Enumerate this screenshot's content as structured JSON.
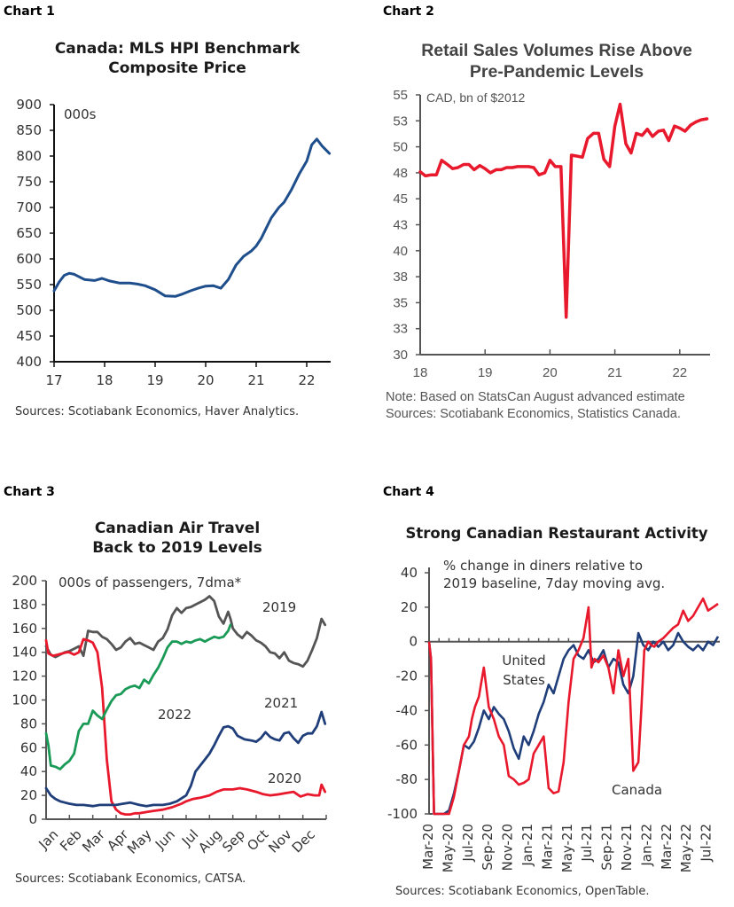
{
  "chart_data": [
    {
      "id": "chart1",
      "panel_label": "Chart 1",
      "type": "line",
      "title_lines": [
        "Canada: MLS HPI Benchmark",
        "Composite Price"
      ],
      "unit_label": "000s",
      "xlabel": "",
      "ylabel": "",
      "x_ticks": [
        "17",
        "18",
        "19",
        "20",
        "21",
        "22"
      ],
      "x_tick_values": [
        17,
        18,
        19,
        20,
        21,
        22
      ],
      "xlim": [
        17,
        22.5
      ],
      "y_ticks": [
        400,
        450,
        500,
        550,
        600,
        650,
        700,
        750,
        800,
        850,
        900
      ],
      "ylim": [
        400,
        900
      ],
      "grid": false,
      "series": [
        {
          "name": "MLS HPI Composite Price",
          "color": "#1f4e8c",
          "x": [
            17.0,
            17.1,
            17.2,
            17.3,
            17.4,
            17.5,
            17.6,
            17.8,
            17.95,
            18.1,
            18.3,
            18.5,
            18.65,
            18.8,
            19.0,
            19.2,
            19.4,
            19.55,
            19.7,
            19.85,
            20.0,
            20.15,
            20.3,
            20.45,
            20.6,
            20.75,
            20.9,
            21.0,
            21.1,
            21.2,
            21.3,
            21.45,
            21.55,
            21.7,
            21.85,
            22.0,
            22.1,
            22.2,
            22.3,
            22.45
          ],
          "y": [
            538,
            555,
            568,
            572,
            570,
            565,
            560,
            558,
            562,
            557,
            553,
            553,
            551,
            548,
            540,
            528,
            527,
            532,
            538,
            543,
            547,
            548,
            543,
            560,
            588,
            605,
            615,
            625,
            640,
            660,
            680,
            700,
            710,
            735,
            765,
            790,
            822,
            833,
            820,
            805
          ]
        }
      ],
      "source": "Sources: Scotiabank Economics, Haver Analytics."
    },
    {
      "id": "chart2",
      "panel_label": "Chart 2",
      "type": "line",
      "title_lines": [
        "Retail Sales Volumes Rise Above",
        "Pre-Pandemic Levels"
      ],
      "unit_label": "CAD, bn of $2012",
      "xlabel": "",
      "ylabel": "",
      "x_ticks": [
        "18",
        "19",
        "20",
        "21",
        "22"
      ],
      "x_tick_values": [
        18,
        19,
        20,
        21,
        22
      ],
      "xlim": [
        18,
        22.5
      ],
      "y_ticks": [
        30,
        33,
        35,
        38,
        40,
        43,
        45,
        48,
        50,
        53,
        55
      ],
      "y_tick_values": [
        30,
        32.5,
        35,
        37.5,
        40,
        42.5,
        45,
        47.5,
        50,
        52.5,
        55
      ],
      "ylim": [
        30,
        55
      ],
      "grid": false,
      "series": [
        {
          "name": "Retail sales volumes",
          "color": "#e8192c",
          "x": [
            18.0,
            18.08,
            18.17,
            18.25,
            18.33,
            18.42,
            18.5,
            18.58,
            18.67,
            18.75,
            18.83,
            18.92,
            19.0,
            19.08,
            19.17,
            19.25,
            19.33,
            19.42,
            19.5,
            19.58,
            19.67,
            19.75,
            19.83,
            19.92,
            20.0,
            20.08,
            20.17,
            20.25,
            20.33,
            20.42,
            20.5,
            20.58,
            20.67,
            20.75,
            20.83,
            20.92,
            21.0,
            21.08,
            21.17,
            21.25,
            21.33,
            21.42,
            21.5,
            21.58,
            21.67,
            21.75,
            21.83,
            21.92,
            22.0,
            22.08,
            22.17,
            22.25,
            22.33,
            22.42
          ],
          "y": [
            47.6,
            47.2,
            47.3,
            47.3,
            48.7,
            48.3,
            47.9,
            48.0,
            48.3,
            48.3,
            47.8,
            48.2,
            47.9,
            47.5,
            47.8,
            47.8,
            48.0,
            48.0,
            48.1,
            48.1,
            48.1,
            48.0,
            47.3,
            47.5,
            48.7,
            48.1,
            48.1,
            33.6,
            49.2,
            49.1,
            49.0,
            50.8,
            51.3,
            51.3,
            48.8,
            48.1,
            52.0,
            54.1,
            50.3,
            49.4,
            51.3,
            51.1,
            51.7,
            51.0,
            51.5,
            51.6,
            50.6,
            52.0,
            51.8,
            51.5,
            52.1,
            52.4,
            52.6,
            52.7
          ]
        }
      ],
      "note": "Note: Based on StatsCan August advanced estimate",
      "source": "Sources: Scotiabank Economics, Statistics Canada."
    },
    {
      "id": "chart3",
      "panel_label": "Chart 3",
      "type": "line",
      "title_lines": [
        "Canadian Air Travel",
        "Back to 2019 Levels"
      ],
      "unit_label": "000s of passengers, 7dma*",
      "xlabel": "",
      "ylabel": "",
      "x_ticks": [
        "Jan",
        "Feb",
        "Mar",
        "Apr",
        "May",
        "Jun",
        "Jul",
        "Aug",
        "Sep",
        "Oct",
        "Nov",
        "Dec"
      ],
      "xlim": [
        0,
        12
      ],
      "y_ticks": [
        0,
        20,
        40,
        60,
        80,
        100,
        120,
        140,
        160,
        180,
        200
      ],
      "ylim": [
        0,
        200
      ],
      "grid": false,
      "series": [
        {
          "name": "2019",
          "color": "#555555",
          "x": [
            0.0,
            0.2,
            0.4,
            0.6,
            0.8,
            1.0,
            1.2,
            1.4,
            1.6,
            1.8,
            2.0,
            2.2,
            2.4,
            2.6,
            2.8,
            3.0,
            3.2,
            3.4,
            3.6,
            3.8,
            4.0,
            4.2,
            4.4,
            4.6,
            4.8,
            5.0,
            5.2,
            5.4,
            5.6,
            5.8,
            6.0,
            6.2,
            6.4,
            6.6,
            6.8,
            7.0,
            7.2,
            7.4,
            7.6,
            7.8,
            7.9,
            8.0,
            8.2,
            8.4,
            8.6,
            8.8,
            9.0,
            9.2,
            9.4,
            9.6,
            9.8,
            10.0,
            10.2,
            10.4,
            10.6,
            10.8,
            11.0,
            11.2,
            11.4,
            11.6,
            11.8,
            11.95
          ],
          "y": [
            145,
            138,
            136,
            138,
            140,
            141,
            143,
            145,
            137,
            158,
            157,
            157,
            153,
            151,
            147,
            142,
            144,
            149,
            152,
            147,
            148,
            146,
            144,
            142,
            149,
            152,
            159,
            171,
            177,
            173,
            177,
            178,
            180,
            182,
            184,
            187,
            183,
            170,
            164,
            174,
            168,
            160,
            155,
            152,
            157,
            154,
            150,
            148,
            145,
            140,
            139,
            135,
            140,
            133,
            131,
            130,
            128,
            133,
            142,
            152,
            168,
            163
          ]
        },
        {
          "name": "2020",
          "color": "#e8192c",
          "x": [
            0.0,
            0.1,
            0.3,
            0.5,
            0.7,
            0.9,
            1.0,
            1.2,
            1.4,
            1.6,
            1.8,
            2.0,
            2.2,
            2.4,
            2.6,
            2.8,
            3.0,
            3.2,
            3.4,
            3.6,
            3.8,
            4.0,
            4.3,
            4.6,
            5.0,
            5.4,
            5.8,
            6.0,
            6.3,
            6.6,
            7.0,
            7.3,
            7.6,
            8.0,
            8.3,
            8.6,
            9.0,
            9.3,
            9.6,
            10.0,
            10.3,
            10.6,
            10.9,
            11.2,
            11.5,
            11.7,
            11.8,
            11.95
          ],
          "y": [
            150,
            139,
            137,
            138,
            139,
            140,
            140,
            138,
            140,
            151,
            150,
            148,
            140,
            110,
            50,
            15,
            8,
            5,
            4,
            4,
            5,
            5,
            6,
            7,
            8,
            10,
            13,
            15,
            17,
            18,
            20,
            23,
            25,
            25,
            26,
            25,
            23,
            21,
            20,
            21,
            22,
            23,
            19,
            21,
            20,
            20,
            29,
            23
          ]
        },
        {
          "name": "2021",
          "color": "#1f3e7a",
          "x": [
            0.0,
            0.2,
            0.4,
            0.6,
            0.8,
            1.0,
            1.3,
            1.6,
            2.0,
            2.3,
            2.6,
            3.0,
            3.3,
            3.6,
            4.0,
            4.3,
            4.6,
            5.0,
            5.3,
            5.6,
            6.0,
            6.2,
            6.4,
            6.6,
            6.8,
            7.0,
            7.2,
            7.4,
            7.6,
            7.8,
            8.0,
            8.2,
            8.5,
            8.8,
            9.0,
            9.2,
            9.4,
            9.6,
            9.8,
            10.0,
            10.2,
            10.4,
            10.6,
            10.8,
            11.0,
            11.2,
            11.4,
            11.6,
            11.8,
            11.95
          ],
          "y": [
            26,
            20,
            17,
            15,
            14,
            13,
            12,
            12,
            11,
            12,
            12,
            12,
            13,
            14,
            12,
            11,
            12,
            12,
            13,
            15,
            20,
            28,
            40,
            45,
            50,
            55,
            62,
            70,
            77,
            78,
            76,
            70,
            67,
            66,
            65,
            68,
            73,
            69,
            67,
            66,
            72,
            73,
            68,
            64,
            70,
            72,
            72,
            78,
            90,
            80
          ]
        },
        {
          "name": "2022",
          "color": "#1a9a57",
          "x": [
            0.0,
            0.1,
            0.2,
            0.4,
            0.6,
            0.8,
            1.0,
            1.2,
            1.4,
            1.6,
            1.8,
            2.0,
            2.2,
            2.4,
            2.6,
            2.8,
            3.0,
            3.2,
            3.4,
            3.6,
            3.8,
            4.0,
            4.2,
            4.4,
            4.6,
            4.8,
            5.0,
            5.2,
            5.4,
            5.6,
            5.8,
            6.0,
            6.2,
            6.4,
            6.6,
            6.8,
            7.0,
            7.2,
            7.4,
            7.6,
            7.8,
            7.9
          ],
          "y": [
            72,
            62,
            45,
            44,
            42,
            46,
            49,
            55,
            74,
            80,
            80,
            91,
            87,
            84,
            92,
            99,
            104,
            105,
            109,
            111,
            112,
            110,
            117,
            114,
            121,
            127,
            135,
            144,
            149,
            149,
            147,
            149,
            148,
            150,
            151,
            149,
            151,
            153,
            152,
            153,
            158,
            163
          ]
        }
      ],
      "annotations": [
        {
          "text": "2019",
          "series": "2019"
        },
        {
          "text": "2022",
          "series": "2022"
        },
        {
          "text": "2021",
          "series": "2021"
        },
        {
          "text": "2020",
          "series": "2020"
        }
      ],
      "source": "Sources: Scotiabank Economics, CATSA."
    },
    {
      "id": "chart4",
      "panel_label": "Chart 4",
      "type": "line",
      "title_lines": [
        "Strong Canadian Restaurant Activity"
      ],
      "unit_label_lines": [
        "% change in diners relative to",
        "2019 baseline, 7day moving avg."
      ],
      "xlabel": "",
      "ylabel": "",
      "x_ticks": [
        "Mar-20",
        "May-20",
        "Jul-20",
        "Sep-20",
        "Nov-20",
        "Jan-21",
        "Mar-21",
        "May-21",
        "Jul-21",
        "Sep-21",
        "Nov-21",
        "Jan-22",
        "Mar-22",
        "May-22",
        "Jul-22"
      ],
      "xlim": [
        0,
        29
      ],
      "y_ticks": [
        -100,
        -80,
        -60,
        -40,
        -20,
        0,
        20,
        40
      ],
      "ylim": [
        -100,
        40
      ],
      "grid": false,
      "series": [
        {
          "name": "United States",
          "color": "#1f3e7a",
          "x": [
            0.0,
            0.2,
            0.5,
            1.0,
            1.5,
            2.0,
            2.5,
            3.0,
            3.5,
            4.0,
            4.5,
            5.0,
            5.5,
            6.0,
            6.5,
            7.0,
            7.5,
            8.0,
            8.5,
            9.0,
            9.5,
            10.0,
            10.5,
            11.0,
            11.5,
            12.0,
            12.5,
            13.0,
            13.5,
            14.0,
            14.5,
            15.0,
            15.5,
            16.0,
            16.5,
            17.0,
            17.5,
            18.0,
            18.5,
            19.0,
            19.5,
            20.0,
            20.5,
            21.0,
            21.5,
            22.0,
            22.5,
            23.0,
            23.5,
            24.0,
            24.5,
            25.0,
            25.5,
            26.0,
            26.5,
            27.0,
            27.5,
            28.0,
            28.5,
            29.0
          ],
          "y": [
            0,
            -10,
            -100,
            -100,
            -100,
            -98,
            -88,
            -75,
            -60,
            -62,
            -58,
            -50,
            -40,
            -45,
            -38,
            -42,
            -45,
            -52,
            -62,
            -68,
            -55,
            -60,
            -52,
            -42,
            -35,
            -25,
            -30,
            -20,
            -10,
            -5,
            -2,
            -8,
            -10,
            -5,
            -12,
            -10,
            -5,
            -15,
            -10,
            -12,
            -25,
            -30,
            -20,
            5,
            -2,
            -5,
            0,
            -3,
            0,
            -5,
            -2,
            5,
            0,
            -3,
            -5,
            -2,
            -5,
            0,
            -2,
            3
          ]
        },
        {
          "name": "Canada",
          "color": "#e8192c",
          "x": [
            0.0,
            0.2,
            0.5,
            1.0,
            1.5,
            2.0,
            2.5,
            3.0,
            3.5,
            4.0,
            4.3,
            4.6,
            5.0,
            5.5,
            6.0,
            6.5,
            7.0,
            7.5,
            8.0,
            8.5,
            9.0,
            9.5,
            10.0,
            10.5,
            11.0,
            11.5,
            12.0,
            12.5,
            13.0,
            13.5,
            14.0,
            14.5,
            15.0,
            15.5,
            16.0,
            16.3,
            16.6,
            17.0,
            17.5,
            18.0,
            18.5,
            19.0,
            19.5,
            20.0,
            20.5,
            21.0,
            21.3,
            21.6,
            22.0,
            22.3,
            22.6,
            23.0,
            23.5,
            24.0,
            24.5,
            25.0,
            25.5,
            26.0,
            26.5,
            27.0,
            27.5,
            28.0,
            28.5,
            29.0
          ],
          "y": [
            0,
            -10,
            -100,
            -100,
            -100,
            -100,
            -90,
            -75,
            -60,
            -55,
            -45,
            -38,
            -32,
            -15,
            -38,
            -45,
            -55,
            -60,
            -78,
            -80,
            -83,
            -82,
            -80,
            -65,
            -60,
            -55,
            -85,
            -88,
            -87,
            -70,
            -35,
            -10,
            -5,
            2,
            20,
            -15,
            -10,
            -12,
            -8,
            -15,
            -30,
            -5,
            -20,
            -10,
            -75,
            -70,
            -40,
            -5,
            0,
            -2,
            -3,
            0,
            2,
            5,
            8,
            10,
            18,
            12,
            15,
            20,
            25,
            18,
            20,
            22
          ]
        }
      ],
      "annotations": [
        {
          "text_lines": [
            "United",
            "States"
          ],
          "series": "United States"
        },
        {
          "text": "Canada",
          "series": "Canada"
        }
      ],
      "source": "Sources: Scotiabank Economics, OpenTable."
    }
  ]
}
